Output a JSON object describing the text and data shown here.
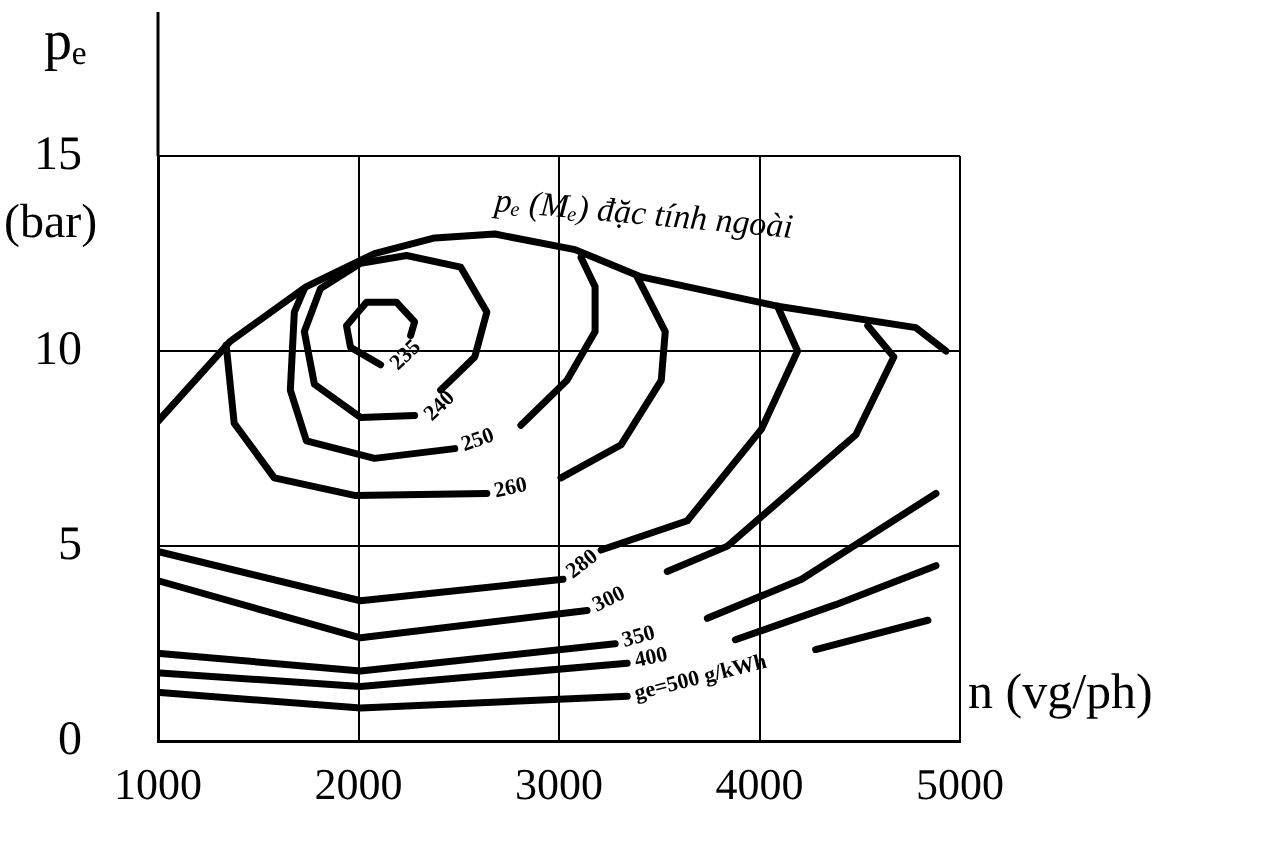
{
  "chart_data": {
    "type": "line",
    "ylabel": "pₑ\n(bar)",
    "xlabel": "n (vg/ph)",
    "xlim": [
      1000,
      5000
    ],
    "xticks": [
      1000,
      2000,
      3000,
      4000,
      5000
    ],
    "ylim": [
      0,
      15
    ],
    "yticks": [
      0,
      5,
      10,
      15
    ],
    "grid": true,
    "legend": false,
    "series": [
      {
        "name": "pₑ (Mₑ) đặc tính ngoài",
        "color": "#000000",
        "x": [
          1000,
          1360,
          1740,
          2080,
          2380,
          2680,
          3080,
          3410,
          4090,
          4780,
          4930
        ],
        "values": [
          8.2,
          10.25,
          11.65,
          12.5,
          12.9,
          13.0,
          12.6,
          11.9,
          11.15,
          10.6,
          10.0
        ]
      },
      {
        "name": "235",
        "color": "#000000",
        "x": [
          2110,
          1960,
          1940,
          2040,
          2190,
          2280,
          2260
        ],
        "values": [
          9.65,
          10.1,
          10.65,
          11.25,
          11.25,
          10.75,
          10.4
        ]
      },
      {
        "name": "240",
        "color": "#000000",
        "x": [
          2280,
          2010,
          1780,
          1730,
          1810,
          2010,
          2240,
          2510,
          2640,
          2580,
          2410
        ],
        "values": [
          8.35,
          8.3,
          9.15,
          10.5,
          11.6,
          12.25,
          12.45,
          12.15,
          11.0,
          9.85,
          9.0
        ]
      },
      {
        "name": "250",
        "color": "#000000",
        "x": [
          3110,
          3180,
          3180,
          3040,
          2810,
          2640,
          2480,
          2080,
          1740,
          1660,
          1680,
          1730
        ],
        "values": [
          12.4,
          11.65,
          10.5,
          9.25,
          8.1,
          null,
          7.5,
          7.25,
          7.7,
          9.0,
          11.0,
          11.6
        ]
      },
      {
        "name": "260",
        "color": "#000000",
        "x": [
          1340,
          1380,
          1580,
          1980,
          2640,
          2820,
          3010,
          3310,
          3510,
          3530,
          3390
        ],
        "values": [
          10.15,
          8.15,
          6.75,
          6.3,
          6.35,
          null,
          6.75,
          7.6,
          9.25,
          10.5,
          11.9
        ]
      },
      {
        "name": "280",
        "color": "#000000",
        "x": [
          1010,
          2010,
          3020,
          3110,
          3210,
          3640,
          4010,
          4190,
          4090
        ],
        "values": [
          4.85,
          3.6,
          4.15,
          null,
          4.9,
          5.65,
          8.0,
          10.0,
          11.15
        ]
      },
      {
        "name": "300",
        "color": "#000000",
        "x": [
          1010,
          2010,
          3140,
          3340,
          3540,
          3840,
          4480,
          4670,
          4540
        ],
        "values": [
          4.1,
          2.65,
          3.35,
          null,
          4.35,
          5.0,
          7.85,
          9.85,
          10.65
        ]
      },
      {
        "name": "350",
        "color": "#000000",
        "x": [
          1010,
          2010,
          3280,
          3510,
          3740,
          4210,
          4880
        ],
        "values": [
          2.25,
          1.8,
          2.5,
          null,
          3.15,
          4.15,
          6.35
        ]
      },
      {
        "name": "400",
        "color": "#000000",
        "x": [
          1010,
          2010,
          3340,
          3610,
          3880,
          4380,
          4880
        ],
        "values": [
          1.75,
          1.4,
          2.0,
          null,
          2.6,
          3.5,
          4.5
        ]
      },
      {
        "name": "ge=500 g/kWh",
        "color": "#000000",
        "x": [
          1010,
          2010,
          3340,
          3810,
          4280,
          4840
        ],
        "values": [
          1.25,
          0.85,
          1.15,
          null,
          2.35,
          3.1
        ]
      }
    ]
  }
}
